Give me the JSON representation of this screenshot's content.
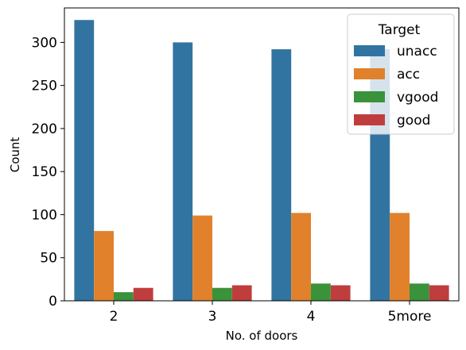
{
  "chart_data": {
    "type": "bar",
    "xlabel": "No. of doors",
    "ylabel": "Count",
    "categories": [
      "2",
      "3",
      "4",
      "5more"
    ],
    "ylim": [
      0,
      340
    ],
    "yticks": [
      0,
      50,
      100,
      150,
      200,
      250,
      300
    ],
    "grid": false,
    "legend": {
      "title": "Target",
      "placement": "top-right"
    },
    "series": [
      {
        "name": "unacc",
        "color": "#3274a1",
        "values": [
          326,
          300,
          292,
          292
        ]
      },
      {
        "name": "acc",
        "color": "#e1812c",
        "values": [
          81,
          99,
          102,
          102
        ]
      },
      {
        "name": "vgood",
        "color": "#3a923a",
        "values": [
          10,
          15,
          20,
          20
        ]
      },
      {
        "name": "good",
        "color": "#c03d3e",
        "values": [
          15,
          18,
          18,
          18
        ]
      }
    ]
  }
}
